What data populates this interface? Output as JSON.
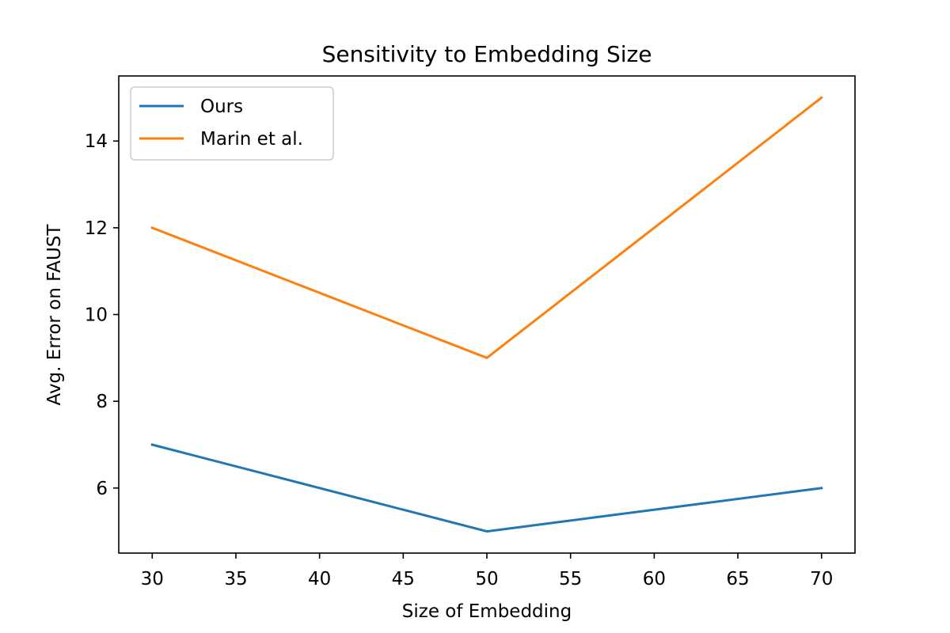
{
  "chart_data": {
    "type": "line",
    "title": "Sensitivity to Embedding Size",
    "xlabel": "Size of Embedding",
    "ylabel": "Avg. Error on FAUST",
    "xlim": [
      28,
      72
    ],
    "ylim": [
      4.5,
      15.5
    ],
    "xticks": [
      30,
      35,
      40,
      45,
      50,
      55,
      60,
      65,
      70
    ],
    "yticks": [
      6,
      8,
      10,
      12,
      14
    ],
    "x": [
      30,
      50,
      70
    ],
    "series": [
      {
        "name": "Ours",
        "color": "#1f77b4",
        "values": [
          7,
          5,
          6
        ]
      },
      {
        "name": "Marin et al.",
        "color": "#ff7f0e",
        "values": [
          12,
          9,
          15
        ]
      }
    ],
    "legend_position": "top-left",
    "grid": false
  }
}
